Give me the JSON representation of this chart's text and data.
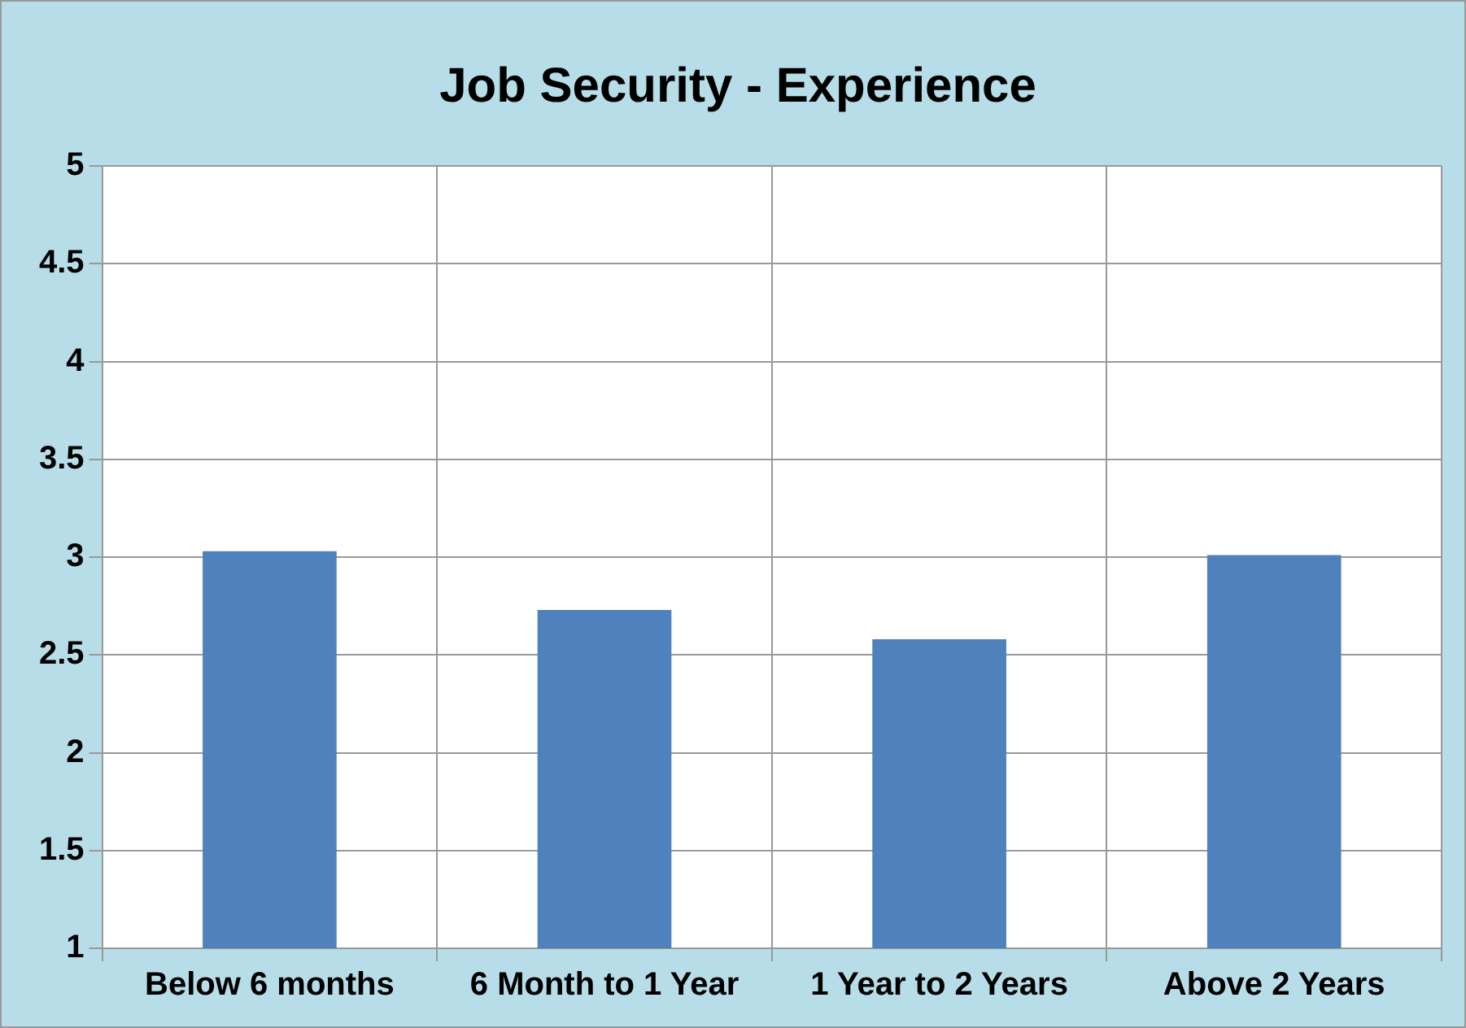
{
  "chart_data": {
    "type": "bar",
    "title": "Job Security - Experience",
    "categories": [
      "Below 6 months",
      "6 Month to 1 Year",
      "1 Year to 2 Years",
      "Above 2 Years"
    ],
    "values": [
      3.03,
      2.73,
      2.58,
      3.01
    ],
    "color": "#4f81bd",
    "ylim": [
      1,
      5
    ],
    "yticks": [
      1,
      1.5,
      2,
      2.5,
      3,
      3.5,
      4,
      4.5,
      5
    ],
    "grid": true,
    "legend": false
  }
}
